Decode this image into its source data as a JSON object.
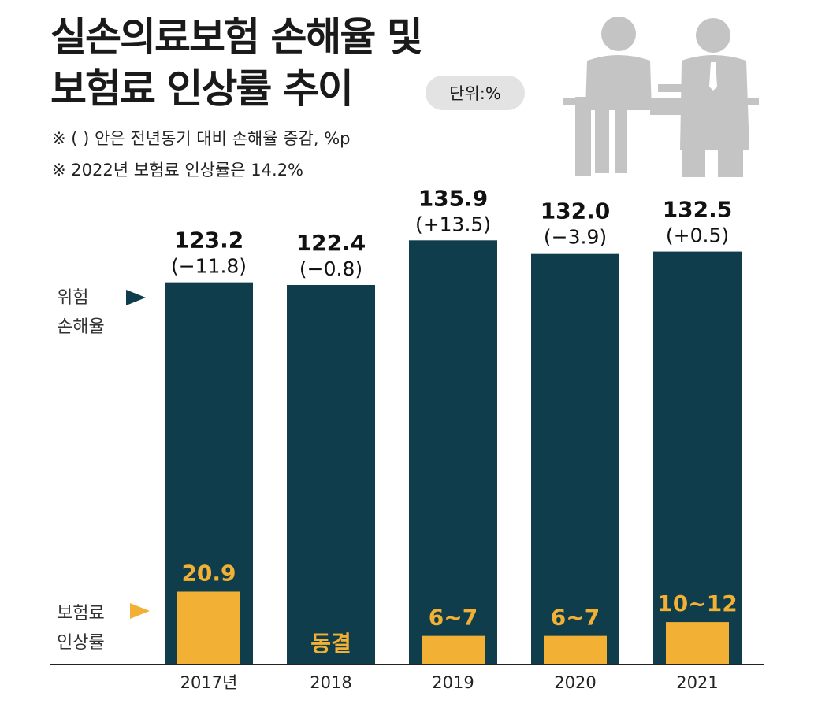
{
  "title_line1": "실손의료보험 손해율 및",
  "title_line2": "보험료 인상률 추이",
  "unit": "단위:%",
  "notes": [
    "※ (  ) 안은 전년동기 대비 손해율 증감, %p",
    "※ 2022년 보험료 인상률은 14.2%"
  ],
  "icon": "office-meeting-icon",
  "colors": {
    "loss_bar": "#0f3d4b",
    "rate_bar": "#f2b134"
  },
  "chart_data": {
    "type": "bar",
    "categories": [
      "2017년",
      "2018",
      "2019",
      "2020",
      "2021"
    ],
    "series": [
      {
        "name": "위험 손해율",
        "values": [
          123.2,
          122.4,
          135.9,
          132.0,
          132.5
        ],
        "labels": [
          "123.2",
          "122.4",
          "135.9",
          "132.0",
          "132.5"
        ],
        "changes": [
          "(−11.8)",
          "(−0.8)",
          "(+13.5)",
          "(−3.9)",
          "(+0.5)"
        ]
      },
      {
        "name": "보험료 인상률",
        "values": [
          20.9,
          0,
          6.5,
          6.5,
          11
        ],
        "labels": [
          "20.9",
          "동결",
          "6~7",
          "6~7",
          "10~12"
        ]
      }
    ],
    "legend": {
      "loss_line1": "위험",
      "loss_line2": "손해율",
      "rate_line1": "보험료",
      "rate_line2": "인상률",
      "placement": "left"
    }
  }
}
